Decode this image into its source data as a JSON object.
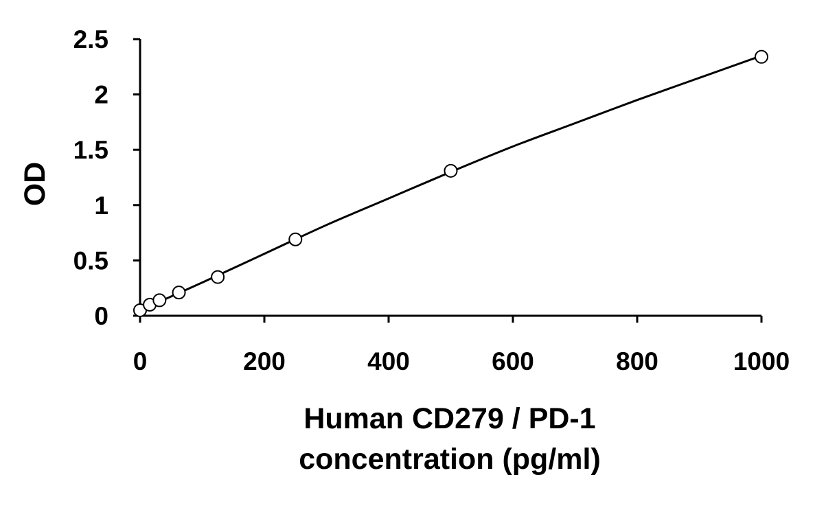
{
  "chart_data": {
    "type": "scatter",
    "title": "",
    "xlabel_lines": [
      "Human CD279 / PD-1",
      "concentration (pg/ml)"
    ],
    "ylabel": "OD",
    "xlim": [
      0,
      1000
    ],
    "ylim": [
      0,
      2.5
    ],
    "x_ticks": [
      0,
      200,
      400,
      600,
      800,
      1000
    ],
    "x_tick_labels": [
      "0",
      "200",
      "400",
      "600",
      "800",
      "1000"
    ],
    "y_ticks": [
      0,
      0.5,
      1,
      1.5,
      2,
      2.5
    ],
    "y_tick_labels": [
      "0",
      "0.5",
      "1",
      "1.5",
      "2",
      "2.5"
    ],
    "grid": false,
    "legend": "none",
    "series": [
      {
        "marker": "open-circle",
        "x": [
          0,
          15.6,
          31.3,
          62.5,
          125,
          250,
          500,
          1000
        ],
        "y": [
          0.05,
          0.1,
          0.14,
          0.21,
          0.35,
          0.69,
          1.31,
          2.34
        ]
      }
    ],
    "fit_curve": {
      "style": "solid",
      "x": [
        0,
        100,
        200,
        300,
        400,
        500,
        600,
        700,
        800,
        900,
        1000
      ],
      "y": [
        0.05,
        0.3,
        0.56,
        0.82,
        1.06,
        1.3,
        1.53,
        1.74,
        1.95,
        2.15,
        2.35
      ]
    },
    "colors": {
      "axis": "#000000",
      "marker_stroke": "#000000",
      "marker_fill": "#ffffff",
      "curve": "#000000"
    }
  }
}
